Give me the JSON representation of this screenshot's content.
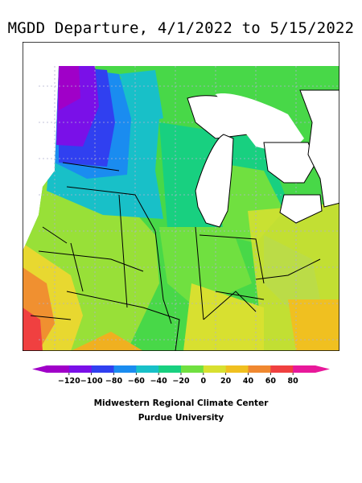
{
  "title": "MGDD Departure, 4/1/2022 to 5/15/2022",
  "legend": {
    "labels": [
      "−120",
      "−100",
      "−80",
      "−60",
      "−40",
      "−20",
      "0",
      "20",
      "40",
      "60",
      "80"
    ],
    "colors": [
      "#a000c8",
      "#7a10e8",
      "#3040f0",
      "#1a8cf0",
      "#18c0c8",
      "#18d080",
      "#70e040",
      "#d8e030",
      "#f0c020",
      "#f08830",
      "#f04040",
      "#e8189a"
    ]
  },
  "credit": {
    "line1": "Midwestern Regional Climate Center",
    "line2": "Purdue University"
  }
}
